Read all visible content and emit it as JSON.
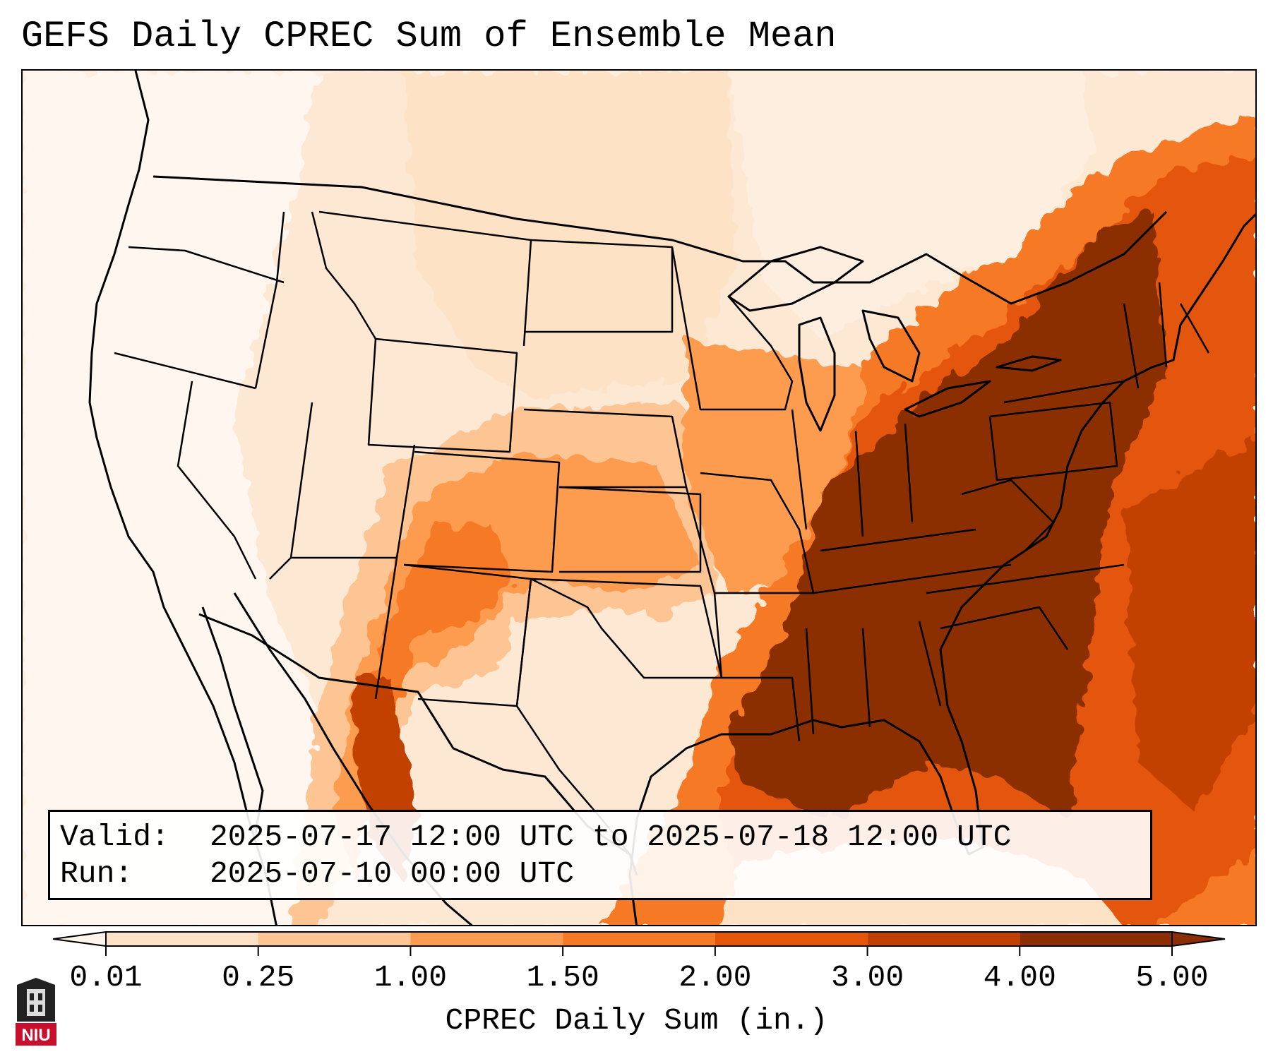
{
  "title": "GEFS Daily CPREC Sum of Ensemble Mean",
  "info": {
    "valid_label": "Valid:",
    "valid_value": "2025-07-17 12:00 UTC to 2025-07-18 12:00 UTC",
    "run_label": "Run:",
    "run_value": "2025-07-10 00:00 UTC"
  },
  "colorbar": {
    "label": "CPREC Daily Sum (in.)",
    "ticks": [
      "0.01",
      "0.25",
      "1.00",
      "1.50",
      "2.00",
      "3.00",
      "4.00",
      "5.00"
    ],
    "colors": [
      "#fff5eb",
      "#fde2c6",
      "#fdc593",
      "#fd9b50",
      "#f67926",
      "#e45709",
      "#c24002",
      "#8b2e06"
    ]
  },
  "logo": {
    "text": "NIU"
  }
}
